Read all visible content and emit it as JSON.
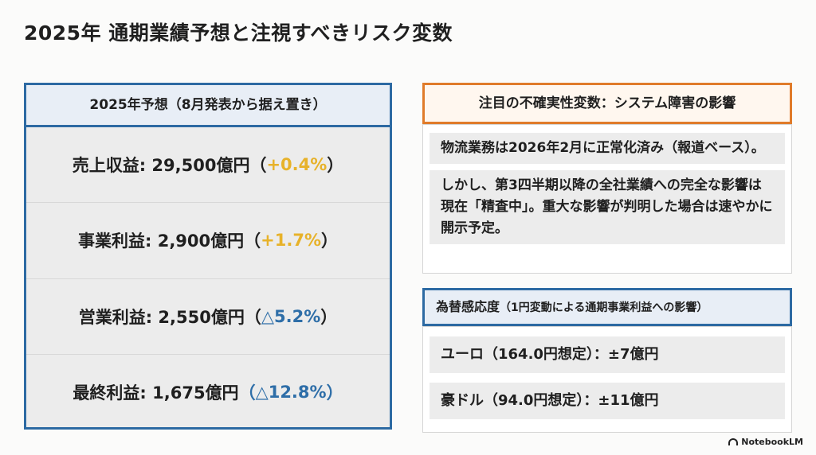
{
  "title": "2025年 通期業績予想と注視すべきリスク変数",
  "forecast": {
    "header": "2025年予想（8月発表から据え置き）",
    "metrics": [
      {
        "label": "売上収益: 29,500億円",
        "open": "（",
        "change": "+0.4%",
        "close": "）",
        "direction": "up"
      },
      {
        "label": "事業利益: 2,900億円",
        "open": "（",
        "change": "+1.7%",
        "close": "）",
        "direction": "up"
      },
      {
        "label": "営業利益: 2,550億円",
        "open": "（",
        "change": "△5.2%",
        "close": "）",
        "direction": "down"
      },
      {
        "label": "最終利益: 1,675億円",
        "open": "（",
        "change": "△12.8%",
        "close": "）",
        "direction": "down"
      }
    ]
  },
  "risk": {
    "header": "注目の不確実性変数：システム障害の影響",
    "notes": [
      "物流業務は2026年2月に正常化済み（報道ベース）。",
      "しかし、第3四半期以降の全社業績への完全な影響は現在「精査中」。重大な影響が判明した場合は速やかに開示予定。"
    ]
  },
  "fx": {
    "header_main": "為替感応度",
    "header_sub": "（1円変動による通期事業利益への影響）",
    "items": [
      "ユーロ（164.0円想定）：±7億円",
      "豪ドル（94.0円想定）：±11億円"
    ]
  },
  "logo": "NotebookLM",
  "colors": {
    "up": "#e7b22a",
    "down": "#2e6ea8",
    "blue_border": "#2d6aa3",
    "orange_border": "#e07b2a"
  }
}
